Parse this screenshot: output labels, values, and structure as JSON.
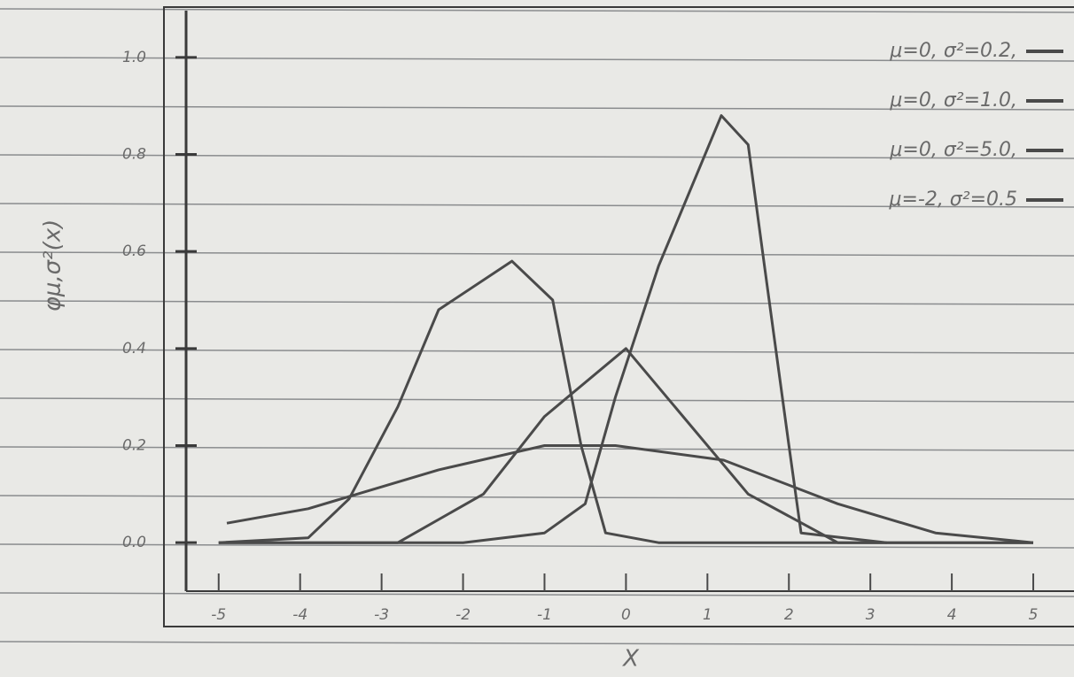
{
  "chart_data": {
    "type": "line",
    "y_label": "φμ,σ²(x)",
    "x_label": "X",
    "xlim": [
      -5.4,
      5.5
    ],
    "ylim": [
      -0.1,
      1.1
    ],
    "xticks": [
      -5,
      -4,
      -3,
      -2,
      -1,
      0,
      1,
      2,
      3,
      4,
      5
    ],
    "yticks": [
      {
        "value": 0,
        "label": "0.0"
      },
      0.2,
      0.4,
      0.6,
      0.8,
      {
        "value": 1,
        "label": "1.0"
      }
    ],
    "legend": "upper right",
    "series": [
      {
        "name": "μ=0, σ²=0.2,",
        "color": "#4a4a4a",
        "x": [
          -5,
          -2,
          -1,
          -0.5,
          -0.13,
          0.4,
          1.17,
          1.5,
          1.7,
          2.0,
          2.15,
          3.2,
          5
        ],
        "values": [
          0,
          0,
          0.02,
          0.08,
          0.3,
          0.57,
          0.88,
          0.82,
          0.57,
          0.2,
          0.02,
          0,
          0
        ]
      },
      {
        "name": "μ=0, σ²=1.0,",
        "color": "#4a4a4a",
        "x": [
          -5,
          -2.8,
          -1.75,
          -1,
          0,
          0.7,
          1.5,
          2.6,
          5
        ],
        "values": [
          0,
          0,
          0.1,
          0.26,
          0.4,
          0.26,
          0.1,
          0,
          0
        ]
      },
      {
        "name": "μ=0, σ²=5.0,",
        "color": "#4a4a4a",
        "x": [
          -4.9,
          -3.9,
          -2.3,
          -1,
          -0.13,
          1.2,
          2.6,
          3.8,
          5
        ],
        "values": [
          0.04,
          0.07,
          0.15,
          0.2,
          0.2,
          0.17,
          0.08,
          0.02,
          0
        ]
      },
      {
        "name": "μ=-2, σ²=0.5",
        "color": "#4a4a4a",
        "x": [
          -5,
          -3.9,
          -3.4,
          -2.8,
          -2.3,
          -1.4,
          -0.9,
          -0.55,
          -0.25,
          0.4,
          3.2
        ],
        "values": [
          0,
          0.01,
          0.09,
          0.28,
          0.48,
          0.58,
          0.5,
          0.2,
          0.02,
          0,
          0
        ]
      }
    ]
  }
}
